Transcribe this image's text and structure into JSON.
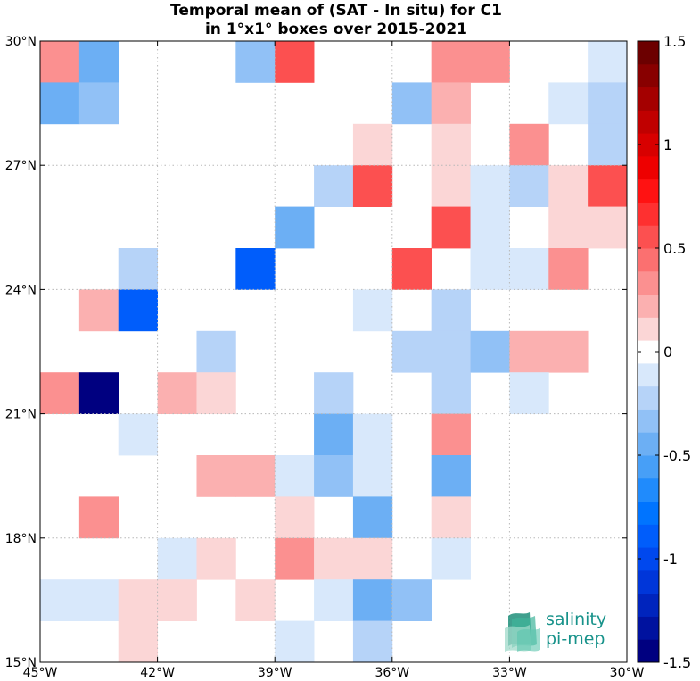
{
  "title": {
    "line1": "Temporal mean of (SAT - In situ) for C1",
    "line2": "in 1°x1° boxes over 2015-2021"
  },
  "logo": {
    "line1": "salinity",
    "line2": "pi-mep"
  },
  "chart_data": {
    "type": "heatmap",
    "title": "Temporal mean of (SAT - In situ) for C1 in 1°x1° boxes over 2015-2021",
    "x_range": [
      -45,
      -30
    ],
    "y_range": [
      15,
      30
    ],
    "x_ticks": [
      -45,
      -42,
      -39,
      -36,
      -33,
      -30
    ],
    "x_tick_labels": [
      "45°W",
      "42°W",
      "39°W",
      "36°W",
      "33°W",
      "30°W"
    ],
    "y_ticks": [
      15,
      18,
      21,
      24,
      27,
      30
    ],
    "y_tick_labels": [
      "15°N",
      "18°N",
      "21°N",
      "24°N",
      "27°N",
      "30°N"
    ],
    "grid": true,
    "colorbar": {
      "range": [
        -1.5,
        1.5
      ],
      "ticks": [
        -1.5,
        -1,
        -0.5,
        0,
        0.5,
        1,
        1.5
      ],
      "tick_labels": [
        "-1.5",
        "-1",
        "-0.5",
        "0",
        "0.5",
        "1",
        "1.5"
      ],
      "colors": [
        "#000080",
        "#00129f",
        "#0024bd",
        "#0036d9",
        "#0048ee",
        "#005dfb",
        "#0074ff",
        "#208bfc",
        "#479ff7",
        "#6caff4",
        "#91c1f6",
        "#b6d3f8",
        "#d8e8fb",
        "#ffffff",
        "#fbd6d6",
        "#fbb0b0",
        "#fb9090",
        "#fb7070",
        "#fc5050",
        "#fe3030",
        "#ff1212",
        "#ee0000",
        "#d80000",
        "#c00000",
        "#a40000",
        "#880000",
        "#6c0000"
      ]
    },
    "cells": [
      {
        "lon": -44.5,
        "lat": 29.5,
        "value": 0.35
      },
      {
        "lon": -43.5,
        "lat": 29.5,
        "value": -0.4
      },
      {
        "lon": -39.5,
        "lat": 29.5,
        "value": -0.3
      },
      {
        "lon": -38.5,
        "lat": 29.5,
        "value": 0.6
      },
      {
        "lon": -34.5,
        "lat": 29.5,
        "value": 0.35
      },
      {
        "lon": -33.5,
        "lat": 29.5,
        "value": 0.35
      },
      {
        "lon": -30.5,
        "lat": 29.5,
        "value": -0.15
      },
      {
        "lon": -44.5,
        "lat": 28.5,
        "value": -0.5
      },
      {
        "lon": -43.5,
        "lat": 28.5,
        "value": -0.3
      },
      {
        "lon": -35.5,
        "lat": 28.5,
        "value": -0.35
      },
      {
        "lon": -34.5,
        "lat": 28.5,
        "value": 0.25
      },
      {
        "lon": -31.5,
        "lat": 28.5,
        "value": -0.15
      },
      {
        "lon": -30.5,
        "lat": 28.5,
        "value": -0.25
      },
      {
        "lon": -36.5,
        "lat": 27.5,
        "value": 0.15
      },
      {
        "lon": -34.5,
        "lat": 27.5,
        "value": 0.15
      },
      {
        "lon": -32.5,
        "lat": 27.5,
        "value": 0.3
      },
      {
        "lon": -30.5,
        "lat": 27.5,
        "value": -0.25
      },
      {
        "lon": -37.5,
        "lat": 26.5,
        "value": -0.25
      },
      {
        "lon": -36.5,
        "lat": 26.5,
        "value": 0.5
      },
      {
        "lon": -34.5,
        "lat": 26.5,
        "value": 0.15
      },
      {
        "lon": -33.5,
        "lat": 26.5,
        "value": -0.15
      },
      {
        "lon": -32.5,
        "lat": 26.5,
        "value": -0.25
      },
      {
        "lon": -31.5,
        "lat": 26.5,
        "value": 0.15
      },
      {
        "lon": -30.5,
        "lat": 26.5,
        "value": 0.5
      },
      {
        "lon": -38.5,
        "lat": 25.5,
        "value": -0.5
      },
      {
        "lon": -34.5,
        "lat": 25.5,
        "value": 0.5
      },
      {
        "lon": -33.5,
        "lat": 25.5,
        "value": -0.15
      },
      {
        "lon": -31.5,
        "lat": 25.5,
        "value": 0.15
      },
      {
        "lon": -30.5,
        "lat": 25.5,
        "value": 0.15
      },
      {
        "lon": -42.5,
        "lat": 24.5,
        "value": -0.25
      },
      {
        "lon": -39.5,
        "lat": 24.5,
        "value": -0.85
      },
      {
        "lon": -35.5,
        "lat": 24.5,
        "value": 0.6
      },
      {
        "lon": -33.5,
        "lat": 24.5,
        "value": -0.15
      },
      {
        "lon": -32.5,
        "lat": 24.5,
        "value": -0.15
      },
      {
        "lon": -31.5,
        "lat": 24.5,
        "value": 0.35
      },
      {
        "lon": -43.5,
        "lat": 23.5,
        "value": 0.25
      },
      {
        "lon": -42.5,
        "lat": 23.5,
        "value": -0.9
      },
      {
        "lon": -36.5,
        "lat": 23.5,
        "value": -0.15
      },
      {
        "lon": -34.5,
        "lat": 23.5,
        "value": -0.25
      },
      {
        "lon": -40.5,
        "lat": 22.5,
        "value": -0.25
      },
      {
        "lon": -35.5,
        "lat": 22.5,
        "value": -0.25
      },
      {
        "lon": -34.5,
        "lat": 22.5,
        "value": -0.25
      },
      {
        "lon": -33.5,
        "lat": 22.5,
        "value": -0.35
      },
      {
        "lon": -32.5,
        "lat": 22.5,
        "value": 0.25
      },
      {
        "lon": -31.5,
        "lat": 22.5,
        "value": 0.25
      },
      {
        "lon": -44.5,
        "lat": 21.5,
        "value": 0.35
      },
      {
        "lon": -43.5,
        "lat": 21.5,
        "value": -1.45
      },
      {
        "lon": -41.5,
        "lat": 21.5,
        "value": 0.25
      },
      {
        "lon": -40.5,
        "lat": 21.5,
        "value": 0.15
      },
      {
        "lon": -37.5,
        "lat": 21.5,
        "value": -0.25
      },
      {
        "lon": -34.5,
        "lat": 21.5,
        "value": -0.25
      },
      {
        "lon": -32.5,
        "lat": 21.5,
        "value": -0.15
      },
      {
        "lon": -42.5,
        "lat": 20.5,
        "value": -0.15
      },
      {
        "lon": -37.5,
        "lat": 20.5,
        "value": -0.45
      },
      {
        "lon": -36.5,
        "lat": 20.5,
        "value": -0.15
      },
      {
        "lon": -34.5,
        "lat": 20.5,
        "value": 0.3
      },
      {
        "lon": -40.5,
        "lat": 19.5,
        "value": 0.25
      },
      {
        "lon": -39.5,
        "lat": 19.5,
        "value": 0.25
      },
      {
        "lon": -38.5,
        "lat": 19.5,
        "value": -0.15
      },
      {
        "lon": -37.5,
        "lat": 19.5,
        "value": -0.35
      },
      {
        "lon": -36.5,
        "lat": 19.5,
        "value": -0.15
      },
      {
        "lon": -34.5,
        "lat": 19.5,
        "value": -0.5
      },
      {
        "lon": -43.5,
        "lat": 18.5,
        "value": 0.35
      },
      {
        "lon": -38.5,
        "lat": 18.5,
        "value": 0.15
      },
      {
        "lon": -36.5,
        "lat": 18.5,
        "value": -0.45
      },
      {
        "lon": -34.5,
        "lat": 18.5,
        "value": 0.15
      },
      {
        "lon": -41.5,
        "lat": 17.5,
        "value": -0.15
      },
      {
        "lon": -40.5,
        "lat": 17.5,
        "value": 0.15
      },
      {
        "lon": -38.5,
        "lat": 17.5,
        "value": 0.3
      },
      {
        "lon": -37.5,
        "lat": 17.5,
        "value": 0.15
      },
      {
        "lon": -36.5,
        "lat": 17.5,
        "value": 0.15
      },
      {
        "lon": -34.5,
        "lat": 17.5,
        "value": -0.15
      },
      {
        "lon": -44.5,
        "lat": 16.5,
        "value": -0.15
      },
      {
        "lon": -43.5,
        "lat": 16.5,
        "value": -0.15
      },
      {
        "lon": -42.5,
        "lat": 16.5,
        "value": 0.15
      },
      {
        "lon": -41.5,
        "lat": 16.5,
        "value": 0.15
      },
      {
        "lon": -39.5,
        "lat": 16.5,
        "value": 0.15
      },
      {
        "lon": -37.5,
        "lat": 16.5,
        "value": -0.15
      },
      {
        "lon": -36.5,
        "lat": 16.5,
        "value": -0.45
      },
      {
        "lon": -35.5,
        "lat": 16.5,
        "value": -0.35
      },
      {
        "lon": -42.5,
        "lat": 15.5,
        "value": 0.15
      },
      {
        "lon": -38.5,
        "lat": 15.5,
        "value": -0.15
      },
      {
        "lon": -36.5,
        "lat": 15.5,
        "value": -0.25
      }
    ]
  }
}
